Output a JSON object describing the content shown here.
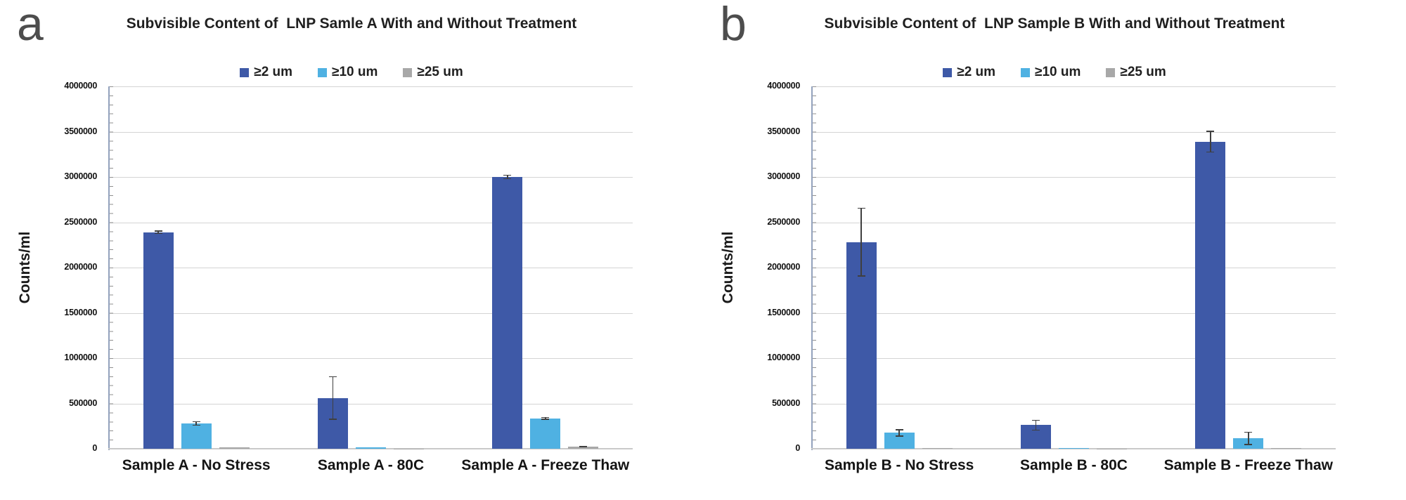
{
  "colors": {
    "series_dark_blue": "#3e59a7",
    "series_light_blue": "#4fb1e2",
    "series_gray": "#a8a8a8",
    "gridline": "#d4d4d4",
    "y_axis": "#93a2bd",
    "baseline": "#c9c9c9",
    "error_bar": "#3f3f3f",
    "text": "#1f1f1f",
    "panel_letter": "#4d4d4d"
  },
  "chart_data": [
    {
      "panel_label": "a",
      "type": "bar",
      "title": "Subvisible Content of  LNP Samle A With and Without Treatment",
      "ylabel": "Counts/ml",
      "xlabel": "",
      "ylim": [
        0,
        4000000
      ],
      "ytick_step": 500000,
      "grid": true,
      "legend_position": "top-center",
      "categories": [
        "Sample A - No Stress",
        "Sample A - 80C",
        "Sample A - Freeze Thaw"
      ],
      "series": [
        {
          "name": "≥2 um",
          "color": "#3e59a7",
          "values": [
            2390000,
            560000,
            3000000
          ],
          "errors": [
            20000,
            240000,
            25000
          ]
        },
        {
          "name": "≥10 um",
          "color": "#4fb1e2",
          "values": [
            280000,
            15000,
            335000
          ],
          "errors": [
            25000,
            8000,
            15000
          ]
        },
        {
          "name": "≥25 um",
          "color": "#a8a8a8",
          "values": [
            15000,
            2000,
            25000
          ],
          "errors": [
            6000,
            0,
            10000
          ]
        }
      ]
    },
    {
      "panel_label": "b",
      "type": "bar",
      "title": "Subvisible Content of  LNP Sample B With and Without Treatment",
      "ylabel": "Counts/ml",
      "xlabel": "",
      "ylim": [
        0,
        4000000
      ],
      "ytick_step": 500000,
      "grid": true,
      "legend_position": "top-center",
      "categories": [
        "Sample B - No Stress",
        "Sample B - 80C",
        "Sample B - Freeze Thaw"
      ],
      "series": [
        {
          "name": "≥2 um",
          "color": "#3e59a7",
          "values": [
            2280000,
            260000,
            3390000
          ],
          "errors": [
            380000,
            60000,
            120000
          ]
        },
        {
          "name": "≥10 um",
          "color": "#4fb1e2",
          "values": [
            175000,
            8000,
            115000
          ],
          "errors": [
            40000,
            4000,
            75000
          ]
        },
        {
          "name": "≥25 um",
          "color": "#a8a8a8",
          "values": [
            5000,
            2000,
            5000
          ],
          "errors": [
            2000,
            0,
            2000
          ]
        }
      ]
    }
  ]
}
